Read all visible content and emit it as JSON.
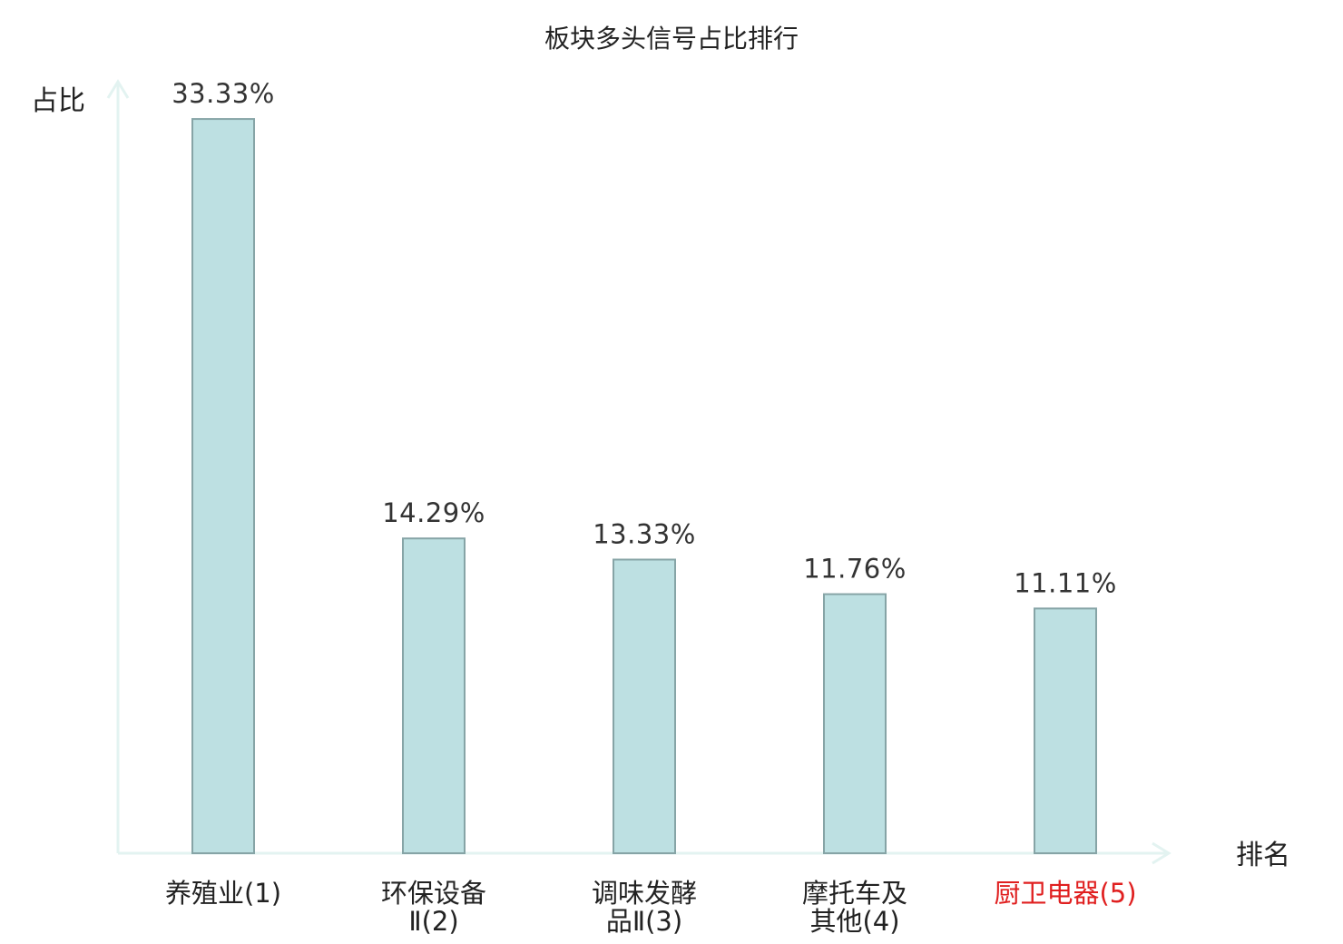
{
  "colors": {
    "bar_fill": "#bde0e2",
    "bar_stroke": "#86a4a6",
    "axis": "#e3f3f1",
    "text": "#222222",
    "highlight": "#e02020"
  },
  "chart_data": {
    "type": "bar",
    "title": "板块多头信号占比排行",
    "ylabel": "占比",
    "xlabel": "排名",
    "ylim": [
      0,
      35
    ],
    "grid": false,
    "categories": [
      {
        "lines": [
          "养殖业(1)"
        ],
        "highlight": false
      },
      {
        "lines": [
          "环保设备",
          "Ⅱ(2)"
        ],
        "highlight": false
      },
      {
        "lines": [
          "调味发酵",
          "品Ⅱ(3)"
        ],
        "highlight": false
      },
      {
        "lines": [
          "摩托车及",
          "其他(4)"
        ],
        "highlight": false
      },
      {
        "lines": [
          "厨卫电器(5)"
        ],
        "highlight": true
      }
    ],
    "values": [
      33.33,
      14.29,
      13.33,
      11.76,
      11.11
    ],
    "value_labels": [
      "33.33%",
      "14.29%",
      "13.33%",
      "11.76%",
      "11.11%"
    ]
  }
}
